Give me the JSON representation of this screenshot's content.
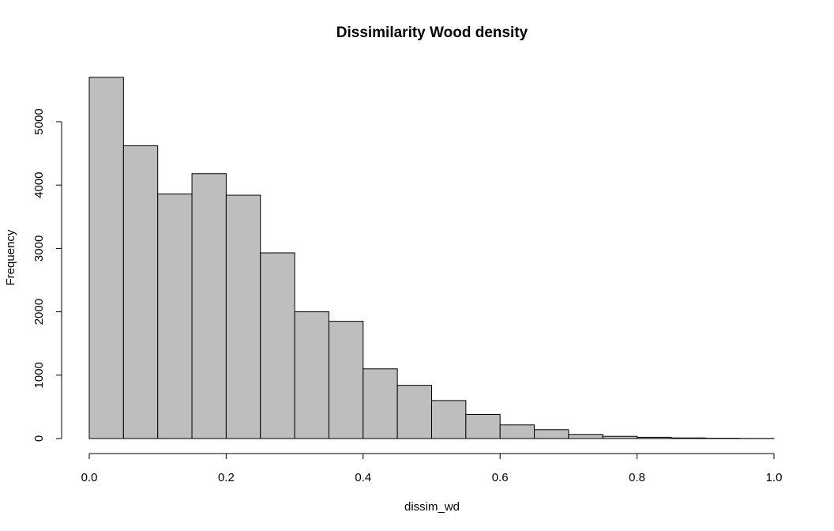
{
  "chart_data": {
    "type": "bar",
    "title": "Dissimilarity Wood density",
    "xlabel": "dissim_wd",
    "ylabel": "Frequency",
    "bins": [
      {
        "start": 0.0,
        "end": 0.05,
        "count": 5700
      },
      {
        "start": 0.05,
        "end": 0.1,
        "count": 4620
      },
      {
        "start": 0.1,
        "end": 0.15,
        "count": 3860
      },
      {
        "start": 0.15,
        "end": 0.2,
        "count": 4180
      },
      {
        "start": 0.2,
        "end": 0.25,
        "count": 3840
      },
      {
        "start": 0.25,
        "end": 0.3,
        "count": 2930
      },
      {
        "start": 0.3,
        "end": 0.35,
        "count": 2000
      },
      {
        "start": 0.35,
        "end": 0.4,
        "count": 1850
      },
      {
        "start": 0.4,
        "end": 0.45,
        "count": 1100
      },
      {
        "start": 0.45,
        "end": 0.5,
        "count": 840
      },
      {
        "start": 0.5,
        "end": 0.55,
        "count": 600
      },
      {
        "start": 0.55,
        "end": 0.6,
        "count": 380
      },
      {
        "start": 0.6,
        "end": 0.65,
        "count": 215
      },
      {
        "start": 0.65,
        "end": 0.7,
        "count": 140
      },
      {
        "start": 0.7,
        "end": 0.75,
        "count": 65
      },
      {
        "start": 0.75,
        "end": 0.8,
        "count": 35
      },
      {
        "start": 0.8,
        "end": 0.85,
        "count": 20
      },
      {
        "start": 0.85,
        "end": 0.9,
        "count": 10
      },
      {
        "start": 0.9,
        "end": 0.95,
        "count": 5
      },
      {
        "start": 0.95,
        "end": 1.0,
        "count": 2
      }
    ],
    "xlim": [
      0,
      1
    ],
    "ylim": [
      0,
      5700
    ],
    "x_ticks": [
      {
        "value": 0.0,
        "label": "0.0"
      },
      {
        "value": 0.2,
        "label": "0.2"
      },
      {
        "value": 0.4,
        "label": "0.4"
      },
      {
        "value": 0.6,
        "label": "0.6"
      },
      {
        "value": 0.8,
        "label": "0.8"
      },
      {
        "value": 1.0,
        "label": "1.0"
      }
    ],
    "y_ticks": [
      {
        "value": 0,
        "label": "0"
      },
      {
        "value": 1000,
        "label": "1000"
      },
      {
        "value": 2000,
        "label": "2000"
      },
      {
        "value": 3000,
        "label": "3000"
      },
      {
        "value": 4000,
        "label": "4000"
      },
      {
        "value": 5000,
        "label": "5000"
      }
    ],
    "grid": false,
    "bar_color": "#bebebe",
    "edge_color": "#000000"
  }
}
